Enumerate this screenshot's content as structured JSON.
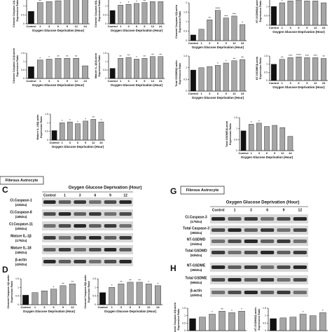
{
  "chart_data": [
    {
      "type": "bar",
      "ylabel": [
        "Cleaved Caspase-1/β-actin",
        "Expression Ratio"
      ],
      "xlabel": "Oxygen Glucose Deprivation (Hour)",
      "categories": [
        "Control",
        "1",
        "3",
        "6",
        "9",
        "12",
        "24"
      ],
      "values": [
        0.7,
        1.2,
        1.25,
        1.3,
        1.4,
        1.45,
        1.35
      ],
      "annotations": [
        null,
        "**",
        "**",
        "***",
        "****",
        "****",
        "***"
      ],
      "ylim": [
        0,
        1.5
      ],
      "yticks": [
        0,
        0.5,
        1,
        1.5
      ],
      "color": "#a6a6a6",
      "first_color": "#111111"
    },
    {
      "type": "bar",
      "ylabel": [
        "Cleaved Caspase-8/β-actin",
        "Expression Ratio"
      ],
      "xlabel": "Oxygen Glucose Deprivation (Hour)",
      "categories": [
        "Control",
        "1",
        "3",
        "6",
        "9",
        "12",
        "24"
      ],
      "values": [
        0.75,
        1.05,
        1.1,
        1.15,
        1.2,
        1.25,
        1.25
      ],
      "annotations": [
        null,
        "*",
        "*",
        "*",
        "**",
        "**",
        "**"
      ],
      "ylim": [
        0,
        1.5
      ],
      "yticks": [
        0,
        0.5,
        1,
        1.5
      ],
      "color": "#a6a6a6",
      "first_color": "#111111"
    },
    {
      "type": "bar",
      "ylabel": [
        "Cleaved Caspase-3/β-actin",
        "Expression Ratio"
      ],
      "xlabel": "Oxygen Glucose Deprivation (Hour)",
      "categories": [
        "Control",
        "1",
        "3",
        "6",
        "9",
        "12",
        "24"
      ],
      "values": [
        0.3,
        0.6,
        1.1,
        1.6,
        1.2,
        1.3,
        0.85
      ],
      "annotations": [
        null,
        null,
        "**",
        "****",
        "***",
        "***",
        "*"
      ],
      "ylim": [
        0,
        2
      ],
      "yticks": [
        0,
        0.5,
        1,
        1.5,
        2
      ],
      "color": "#a6a6a6",
      "first_color": "#111111"
    },
    {
      "type": "bar",
      "ylabel": [
        "NT-GSDMD/β-actin",
        "Expression Ratio"
      ],
      "xlabel": "Oxygen Glucose Deprivation (Hour)",
      "categories": [
        "Control",
        "1",
        "3",
        "6",
        "9",
        "12",
        "24"
      ],
      "values": [
        1,
        1.2,
        1.3,
        1.35,
        1.3,
        1.3,
        1.2
      ],
      "annotations": [
        null,
        "*",
        "*",
        "**",
        "*",
        "*",
        null
      ],
      "ylim": [
        0,
        1.5
      ],
      "yticks": [
        0,
        0.5,
        1,
        1.5
      ],
      "color": "#a6a6a6",
      "first_color": "#111111"
    },
    {
      "type": "bar",
      "ylabel": [
        "Cleaved Caspase-11/β-actin",
        "Expression Ratio"
      ],
      "xlabel": "Oxygen Glucose Deprivation (Hour)",
      "categories": [
        "Control",
        "1",
        "3",
        "6",
        "9",
        "12",
        "24"
      ],
      "values": [
        0.7,
        1.1,
        1.15,
        1.2,
        1.2,
        1.2,
        0.75
      ],
      "annotations": [
        null,
        "*",
        "*",
        "**",
        "**",
        "**",
        null
      ],
      "ylim": [
        0,
        1.5
      ],
      "yticks": [
        0,
        0.5,
        1,
        1.5
      ],
      "color": "#a6a6a6",
      "first_color": "#111111"
    },
    {
      "type": "bar",
      "ylabel": [
        "Mature IL-1β/β-actin",
        "Expression Ratio"
      ],
      "xlabel": "Oxygen Glucose Deprivation (Hour)",
      "categories": [
        "Control",
        "1",
        "3",
        "6",
        "9",
        "12",
        "24"
      ],
      "values": [
        0.6,
        1.2,
        1.25,
        1.15,
        1.2,
        1.3,
        1.3
      ],
      "annotations": [
        null,
        "**",
        "**",
        "*",
        "**",
        "**",
        "**"
      ],
      "ylim": [
        0,
        1.5
      ],
      "yticks": [
        0,
        0.5,
        1,
        1.5
      ],
      "color": "#a6a6a6",
      "first_color": "#111111"
    },
    {
      "type": "bar",
      "ylabel": [
        "Total GSDMD/β-actin",
        "Expression Ratio"
      ],
      "xlabel": "Oxygen Glucose Deprivation (Hour)",
      "categories": [
        "Control",
        "1",
        "3",
        "6",
        "9",
        "12",
        "24"
      ],
      "values": [
        0.9,
        1,
        1.05,
        1.1,
        1.2,
        1.3,
        1.35
      ],
      "annotations": [
        null,
        null,
        null,
        "*",
        "*",
        "**",
        "**"
      ],
      "ylim": [
        0,
        1.5
      ],
      "yticks": [
        0,
        0.5,
        1,
        1.5
      ],
      "color": "#a6a6a6",
      "first_color": "#111111"
    },
    {
      "type": "bar",
      "ylabel": [
        "NT-GSDME/β-actin",
        "Expression Ratio"
      ],
      "xlabel": "Oxygen Glucose Deprivation (Hour)",
      "categories": [
        "Control",
        "1",
        "3",
        "6",
        "9",
        "12",
        "24"
      ],
      "values": [
        1,
        1.3,
        1.4,
        1.45,
        1.4,
        1.4,
        1.35
      ],
      "annotations": [
        null,
        "**",
        "***",
        "****",
        "***",
        "***",
        "**"
      ],
      "ylim": [
        0,
        1.5
      ],
      "yticks": [
        0,
        0.5,
        1,
        1.5
      ],
      "color": "#a6a6a6",
      "first_color": "#111111"
    },
    {
      "type": "bar",
      "ylabel": [
        "Mature IL-18/β-actin",
        "Expression Ratio"
      ],
      "xlabel": "Oxygen Glucose Deprivation (Hour)",
      "categories": [
        "Control",
        "1",
        "3",
        "6",
        "9",
        "12",
        "24"
      ],
      "values": [
        0.55,
        1,
        1.05,
        0.95,
        1.1,
        1.2,
        1.05
      ],
      "annotations": [
        null,
        "*",
        "*",
        "*",
        "*",
        "**",
        "*"
      ],
      "ylim": [
        0,
        1.5
      ],
      "yticks": [
        0,
        0.5,
        1,
        1.5
      ],
      "color": "#a6a6a6",
      "first_color": "#111111"
    },
    {
      "type": "bar",
      "ylabel": [
        "Total GSDME/β-actin",
        "Expression Ratio"
      ],
      "xlabel": "Oxygen Glucose Deprivation (Hour)",
      "categories": [
        "Control",
        "1",
        "3",
        "6",
        "9",
        "12",
        "24"
      ],
      "values": [
        0.9,
        1.2,
        1.25,
        1.1,
        1.15,
        1.05,
        0.65
      ],
      "annotations": [
        null,
        "*",
        "*",
        null,
        null,
        null,
        null
      ],
      "ylim": [
        0,
        1.5
      ],
      "yticks": [
        0,
        0.5,
        1,
        1.5
      ],
      "color": "#a6a6a6",
      "first_color": "#111111"
    },
    {
      "type": "bar",
      "ylabel": [
        "Cleaved Caspase-1/β-actin",
        "Expression Ratio"
      ],
      "xlabel": "Oxygen Glucose Deprivation (Hour)",
      "categories": [
        "Control",
        "1",
        "3",
        "6",
        "9",
        "12"
      ],
      "values": [
        0.55,
        0.7,
        0.8,
        0.9,
        1.1,
        1.2
      ],
      "annotations": [
        null,
        null,
        null,
        "*",
        "**",
        "**"
      ],
      "ylim": [
        0,
        1.5
      ],
      "yticks": [
        0,
        0.5,
        1,
        1.5
      ],
      "color": "#a6a6a6",
      "first_color": "#111111"
    },
    {
      "type": "bar",
      "ylabel": [
        "Cleaved Caspase-8/β-actin",
        "Expression Ratio"
      ],
      "xlabel": "Oxygen Glucose Deprivation (Hour)",
      "categories": [
        "Control",
        "1",
        "3",
        "6",
        "9",
        "12",
        "24"
      ],
      "values": [
        0.7,
        1,
        1.2,
        1.3,
        1.3,
        1.2,
        1.1
      ],
      "annotations": [
        null,
        "*",
        "**",
        "**",
        "**",
        "*",
        "*"
      ],
      "ylim": [
        0,
        1.5
      ],
      "yticks": [
        0,
        0.5,
        1,
        1.5
      ],
      "color": "#a6a6a6",
      "first_color": "#111111"
    },
    {
      "type": "bar",
      "ylabel": [
        "Cleaved Caspase-3/β-actin",
        "Expression Ratio"
      ],
      "values": [
        0.8,
        0.9,
        1.1,
        1.3,
        1.2,
        1.3
      ],
      "annotations": [
        null,
        null,
        "*",
        "**",
        "*",
        "*"
      ],
      "ylim": [
        0,
        1.5
      ],
      "yticks": [
        0,
        0.5,
        1,
        1.5
      ],
      "color": "#a6a6a6",
      "first_color": "#111111"
    },
    {
      "type": "bar",
      "ylabel": [
        "NT-GSDMD/β-actin",
        "Expression Ratio"
      ],
      "values": [
        0.8,
        0.85,
        0.9,
        1.1,
        1,
        1.2
      ],
      "annotations": [
        null,
        null,
        null,
        "*",
        null,
        "*"
      ],
      "ylim": [
        0,
        1.5
      ],
      "yticks": [
        0,
        0.5,
        1,
        1.5
      ],
      "color": "#a6a6a6",
      "first_color": "#111111"
    }
  ],
  "panels": [
    {
      "letter": "C",
      "header": "Fibrous Astrocyte",
      "title": "Oxygen Glucose Deprivation (Hour)",
      "columns": [
        "Control",
        "1",
        "3",
        "6",
        "9",
        "12"
      ],
      "rows": [
        {
          "name": "Cl.Caspase-1",
          "size": "(22kDa)"
        },
        {
          "name": "Cl.Caspase-8",
          "size": "(18kDa)"
        },
        {
          "name": "Cl.Caspase-11",
          "size": "(20kDa)"
        },
        {
          "name": "Mature IL-1β",
          "size": "(17kDa)"
        },
        {
          "name": "Mature IL-18",
          "size": "(18kDa)"
        },
        {
          "name": "β-actin",
          "size": "(42kDa)"
        }
      ]
    },
    {
      "letter": "D"
    },
    {
      "letter": "G",
      "header": "Fibrous Astrocyte",
      "title": "Oxygen Glucose Deprivation (Hour)",
      "columns": [
        "Control",
        "1",
        "3",
        "6",
        "9",
        "12"
      ],
      "rows": [
        {
          "name": "Cl.Caspase-3",
          "size": "(17kDa)"
        },
        {
          "name": "Total Caspase-3",
          "size": "(35kDa)"
        },
        {
          "name": "NT-GSDMD",
          "size": "(31kDa)"
        },
        {
          "name": "Total GSDMD",
          "size": "(53kDa)"
        }
      ]
    },
    {
      "letter": "H",
      "rows": [
        {
          "name": "NT-GSDME",
          "size": "(35kDa)"
        },
        {
          "name": "Total GSDME",
          "size": "(59kDa)"
        },
        {
          "name": "β-actin",
          "size": "(42kDa)"
        }
      ]
    }
  ]
}
